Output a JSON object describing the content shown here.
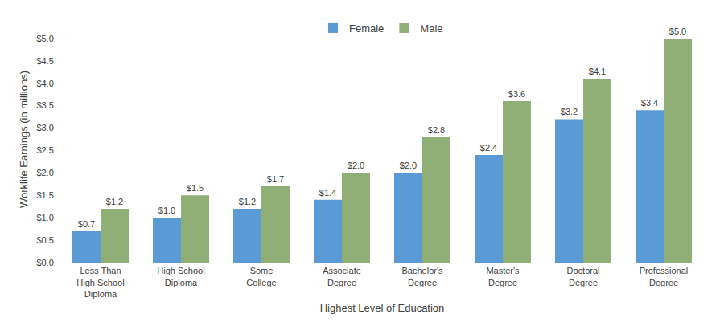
{
  "chart_data": {
    "type": "bar",
    "categories": [
      "Less Than\nHigh School\nDiploma",
      "High School\nDiploma",
      "Some\nCollege",
      "Associate\nDegree",
      "Bachelor's\nDegree",
      "Master's\nDegree",
      "Doctoral\nDegree",
      "Professional\nDegree"
    ],
    "series": [
      {
        "name": "Female",
        "color": "#5B9BD5",
        "values": [
          0.7,
          1.0,
          1.2,
          1.4,
          2.0,
          2.4,
          3.2,
          3.4
        ],
        "value_labels": [
          "$0.7",
          "$1.0",
          "$1.2",
          "$1.4",
          "$2.0",
          "$2.4",
          "$3.2",
          "$3.4"
        ]
      },
      {
        "name": "Male",
        "color": "#8FAF77",
        "values": [
          1.2,
          1.5,
          1.7,
          2.0,
          2.8,
          3.6,
          4.1,
          5.0
        ],
        "value_labels": [
          "$1.2",
          "$1.5",
          "$1.7",
          "$2.0",
          "$2.8",
          "$3.6",
          "$4.1",
          "$5.0"
        ]
      }
    ],
    "xlabel": "Highest Level of Education",
    "ylabel": "Worklife Earnings (in millions)",
    "ylim": [
      0,
      5.5
    ],
    "yticks": [
      {
        "value": 0.0,
        "label": "$0.0"
      },
      {
        "value": 0.5,
        "label": "$0.5"
      },
      {
        "value": 1.0,
        "label": "$1.0"
      },
      {
        "value": 1.5,
        "label": "$1.5"
      },
      {
        "value": 2.0,
        "label": "$2.0"
      },
      {
        "value": 2.5,
        "label": "$2.5"
      },
      {
        "value": 3.0,
        "label": "$3.0"
      },
      {
        "value": 3.5,
        "label": "$3.5"
      },
      {
        "value": 4.0,
        "label": "$4.0"
      },
      {
        "value": 4.5,
        "label": "$4.5"
      },
      {
        "value": 5.0,
        "label": "$5.0"
      }
    ],
    "grid": false,
    "legend": "upper center",
    "data_labels": true
  }
}
